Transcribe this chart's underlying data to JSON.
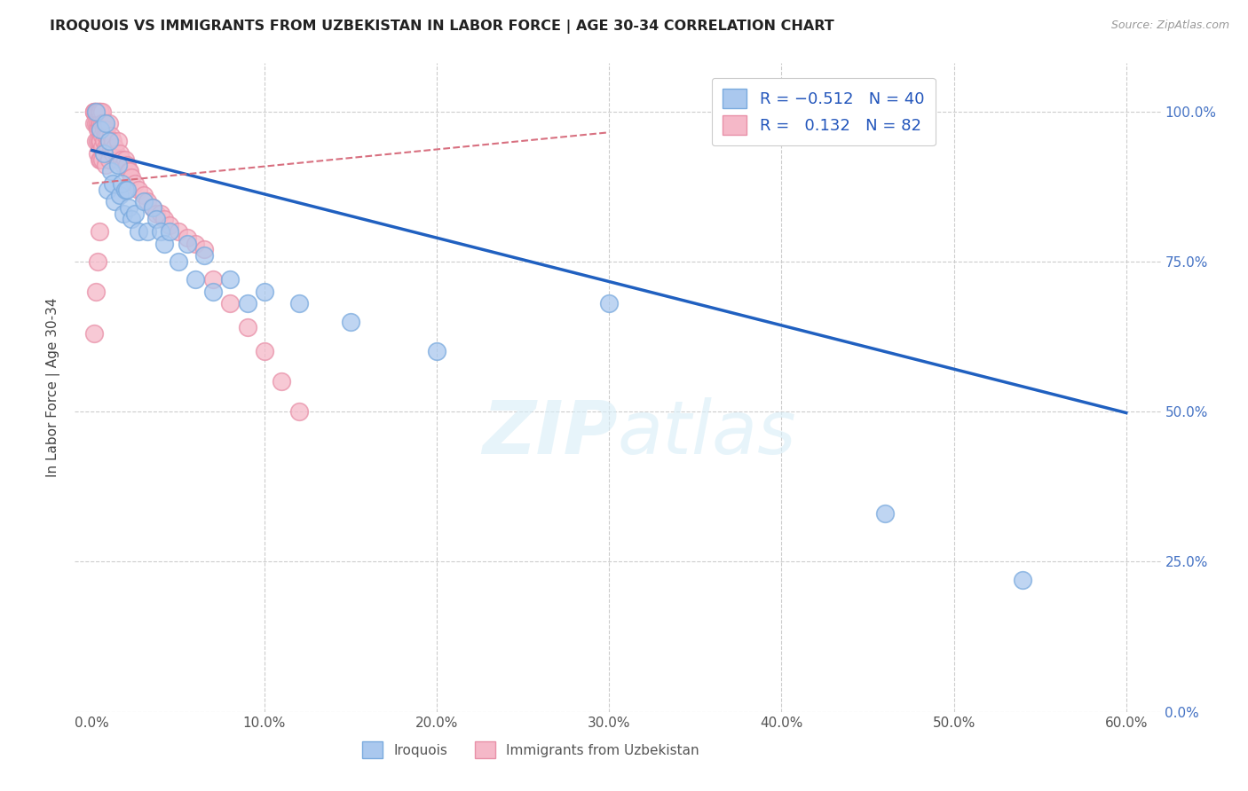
{
  "title": "IROQUOIS VS IMMIGRANTS FROM UZBEKISTAN IN LABOR FORCE | AGE 30-34 CORRELATION CHART",
  "source": "Source: ZipAtlas.com",
  "xlabel_ticks": [
    "0.0%",
    "10.0%",
    "20.0%",
    "30.0%",
    "40.0%",
    "50.0%",
    "60.0%"
  ],
  "ylabel_ticks": [
    "0.0%",
    "25.0%",
    "50.0%",
    "75.0%",
    "100.0%"
  ],
  "xlabel_values": [
    0.0,
    0.1,
    0.2,
    0.3,
    0.4,
    0.5,
    0.6
  ],
  "ylabel_values": [
    0.0,
    0.25,
    0.5,
    0.75,
    1.0
  ],
  "xlim": [
    -0.01,
    0.62
  ],
  "ylim": [
    0.0,
    1.08
  ],
  "ylabel": "In Labor Force | Age 30-34",
  "iroquois_color": "#aac8ee",
  "iroquois_edge": "#7aaade",
  "uzbek_color": "#f5b8c8",
  "uzbek_edge": "#e890a8",
  "trendline_iroquois_color": "#2060c0",
  "trendline_uzbek_color": "#d87080",
  "background_color": "#ffffff",
  "grid_color": "#cccccc",
  "watermark_color": "#d8eef8",
  "iroquois_x": [
    0.002,
    0.005,
    0.007,
    0.008,
    0.009,
    0.01,
    0.011,
    0.012,
    0.013,
    0.015,
    0.016,
    0.017,
    0.018,
    0.019,
    0.02,
    0.021,
    0.023,
    0.025,
    0.027,
    0.03,
    0.032,
    0.035,
    0.037,
    0.04,
    0.042,
    0.045,
    0.05,
    0.055,
    0.06,
    0.065,
    0.07,
    0.08,
    0.09,
    0.1,
    0.12,
    0.15,
    0.2,
    0.3,
    0.46,
    0.54
  ],
  "iroquois_y": [
    1.0,
    0.97,
    0.93,
    0.98,
    0.87,
    0.95,
    0.9,
    0.88,
    0.85,
    0.91,
    0.86,
    0.88,
    0.83,
    0.87,
    0.87,
    0.84,
    0.82,
    0.83,
    0.8,
    0.85,
    0.8,
    0.84,
    0.82,
    0.8,
    0.78,
    0.8,
    0.75,
    0.78,
    0.72,
    0.76,
    0.7,
    0.72,
    0.68,
    0.7,
    0.68,
    0.65,
    0.6,
    0.68,
    0.33,
    0.22
  ],
  "uzbek_x": [
    0.001,
    0.001,
    0.001,
    0.001,
    0.002,
    0.002,
    0.002,
    0.002,
    0.003,
    0.003,
    0.003,
    0.003,
    0.003,
    0.003,
    0.004,
    0.004,
    0.004,
    0.004,
    0.004,
    0.004,
    0.005,
    0.005,
    0.005,
    0.005,
    0.005,
    0.006,
    0.006,
    0.006,
    0.006,
    0.006,
    0.007,
    0.007,
    0.007,
    0.007,
    0.008,
    0.008,
    0.008,
    0.008,
    0.009,
    0.009,
    0.01,
    0.01,
    0.01,
    0.011,
    0.011,
    0.012,
    0.012,
    0.013,
    0.014,
    0.015,
    0.015,
    0.016,
    0.017,
    0.018,
    0.019,
    0.02,
    0.021,
    0.022,
    0.023,
    0.025,
    0.027,
    0.03,
    0.032,
    0.035,
    0.037,
    0.04,
    0.042,
    0.045,
    0.05,
    0.055,
    0.06,
    0.065,
    0.07,
    0.08,
    0.09,
    0.1,
    0.11,
    0.12,
    0.001,
    0.002,
    0.003,
    0.004
  ],
  "uzbek_y": [
    1.0,
    1.0,
    1.0,
    0.98,
    1.0,
    1.0,
    0.98,
    0.95,
    1.0,
    1.0,
    0.98,
    0.97,
    0.95,
    0.93,
    1.0,
    1.0,
    0.98,
    0.97,
    0.95,
    0.92,
    1.0,
    0.98,
    0.97,
    0.95,
    0.92,
    1.0,
    0.98,
    0.96,
    0.94,
    0.92,
    0.98,
    0.97,
    0.95,
    0.93,
    0.97,
    0.96,
    0.94,
    0.91,
    0.96,
    0.94,
    0.98,
    0.95,
    0.92,
    0.96,
    0.94,
    0.95,
    0.93,
    0.94,
    0.93,
    0.95,
    0.92,
    0.93,
    0.92,
    0.91,
    0.92,
    0.91,
    0.9,
    0.9,
    0.89,
    0.88,
    0.87,
    0.86,
    0.85,
    0.84,
    0.83,
    0.83,
    0.82,
    0.81,
    0.8,
    0.79,
    0.78,
    0.77,
    0.72,
    0.68,
    0.64,
    0.6,
    0.55,
    0.5,
    0.63,
    0.7,
    0.75,
    0.8
  ],
  "trendline_iroq_x0": 0.0,
  "trendline_iroq_x1": 0.6,
  "trendline_iroq_y0": 0.935,
  "trendline_iroq_y1": 0.498,
  "trendline_uzbek_x0": 0.0,
  "trendline_uzbek_x1": 0.3,
  "trendline_uzbek_y0": 0.88,
  "trendline_uzbek_y1": 0.965
}
